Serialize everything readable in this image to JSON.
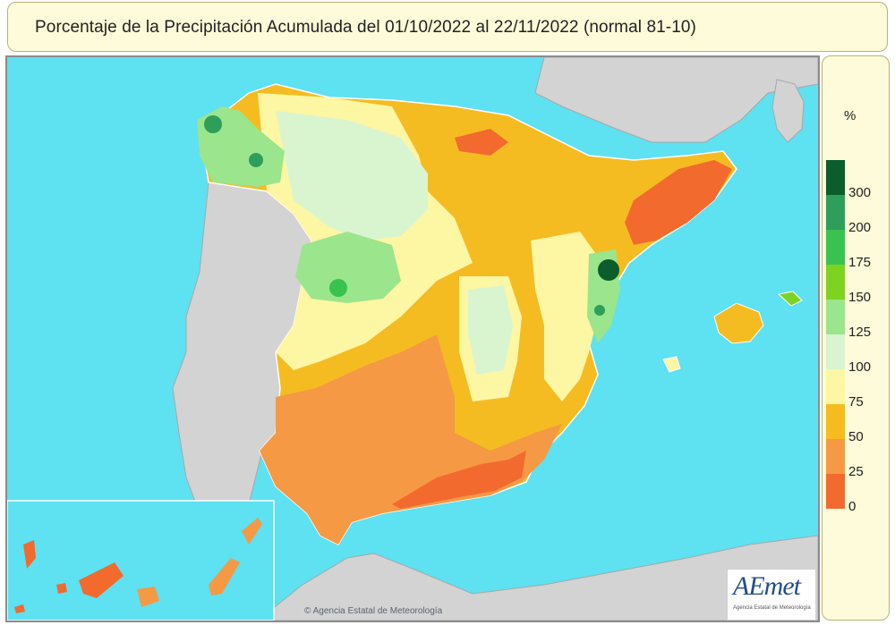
{
  "title": "Porcentaje de la Precipitación Acumulada del 01/10/2022 al 22/11/2022 (normal 81-10)",
  "legend": {
    "unit": "%",
    "classes": [
      {
        "label": "300",
        "color": "#0b5d2b"
      },
      {
        "label": "200",
        "color": "#2e9e5b"
      },
      {
        "label": "175",
        "color": "#39c24f"
      },
      {
        "label": "150",
        "color": "#7ed321"
      },
      {
        "label": "125",
        "color": "#9be58c"
      },
      {
        "label": "100",
        "color": "#d9f5cf"
      },
      {
        "label": "75",
        "color": "#fdf6a3"
      },
      {
        "label": "50",
        "color": "#f5bc21"
      },
      {
        "label": "25",
        "color": "#f59945"
      },
      {
        "label": "0",
        "color": "#f26a2e"
      }
    ]
  },
  "map": {
    "sea_color": "#5ee1f1",
    "land_foreign_color": "#d3d3d3"
  },
  "copyright": "© Agencia Estatal de Meteorología",
  "logo": {
    "text": "AEmet",
    "sub": "Agencia Estatal de Meteorología"
  }
}
